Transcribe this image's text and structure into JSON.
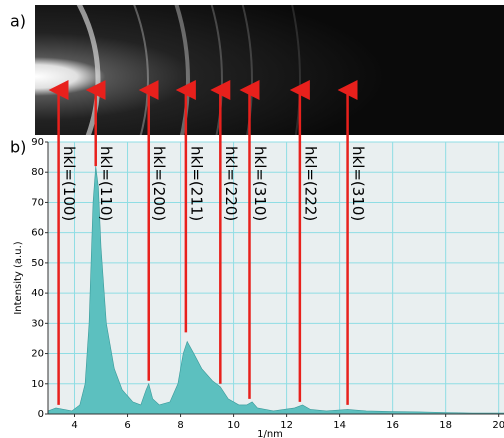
{
  "panel_labels": [
    "a)",
    "b)"
  ],
  "chart_data": {
    "type": "area",
    "x_label": "1/nm",
    "y_label": "Intensity (a.u.)",
    "color": "#5cc0bf",
    "x": [
      3.0,
      3.3,
      3.6,
      3.9,
      4.2,
      4.4,
      4.55,
      4.7,
      4.8,
      4.9,
      5.0,
      5.2,
      5.5,
      5.8,
      6.2,
      6.5,
      6.7,
      6.8,
      6.95,
      7.2,
      7.6,
      7.9,
      8.1,
      8.25,
      8.5,
      8.8,
      9.2,
      9.5,
      9.8,
      10.2,
      10.5,
      10.7,
      10.9,
      11.5,
      12.3,
      12.6,
      12.9,
      13.5,
      14.3,
      15,
      16,
      17,
      18,
      19,
      20.2
    ],
    "values": [
      1,
      2,
      1.5,
      1,
      3,
      10,
      30,
      70,
      82,
      75,
      55,
      30,
      15,
      8,
      4,
      3,
      8,
      10,
      5,
      3,
      4,
      10,
      20,
      24,
      20,
      15,
      11,
      9,
      5,
      3,
      3,
      4,
      2,
      1,
      2,
      3,
      1.5,
      1,
      1.5,
      1,
      0.8,
      0.7,
      0.5,
      0.3,
      0.3
    ],
    "xlim": [
      3,
      20.2
    ],
    "ylim": [
      0,
      90
    ],
    "xticks": [
      4,
      6,
      8,
      10,
      12,
      14,
      16,
      18,
      20
    ],
    "yticks": [
      0,
      10,
      20,
      30,
      40,
      50,
      60,
      70,
      80,
      90
    ],
    "grid": true,
    "annotations": [
      {
        "label": "hkl=(100)",
        "x": 3.4,
        "y": 3
      },
      {
        "label": "hkl=(110)",
        "x": 4.8,
        "y": 82
      },
      {
        "label": "hkl=(200)",
        "x": 6.8,
        "y": 11
      },
      {
        "label": "hkl=(211)",
        "x": 8.2,
        "y": 27
      },
      {
        "label": "hkl=(220)",
        "x": 9.5,
        "y": 10
      },
      {
        "label": "hkl=(310)",
        "x": 10.6,
        "y": 5
      },
      {
        "label": "hkl=(222)",
        "x": 12.5,
        "y": 4
      },
      {
        "label": "hkl=(310)",
        "x": 14.3,
        "y": 3
      }
    ]
  }
}
